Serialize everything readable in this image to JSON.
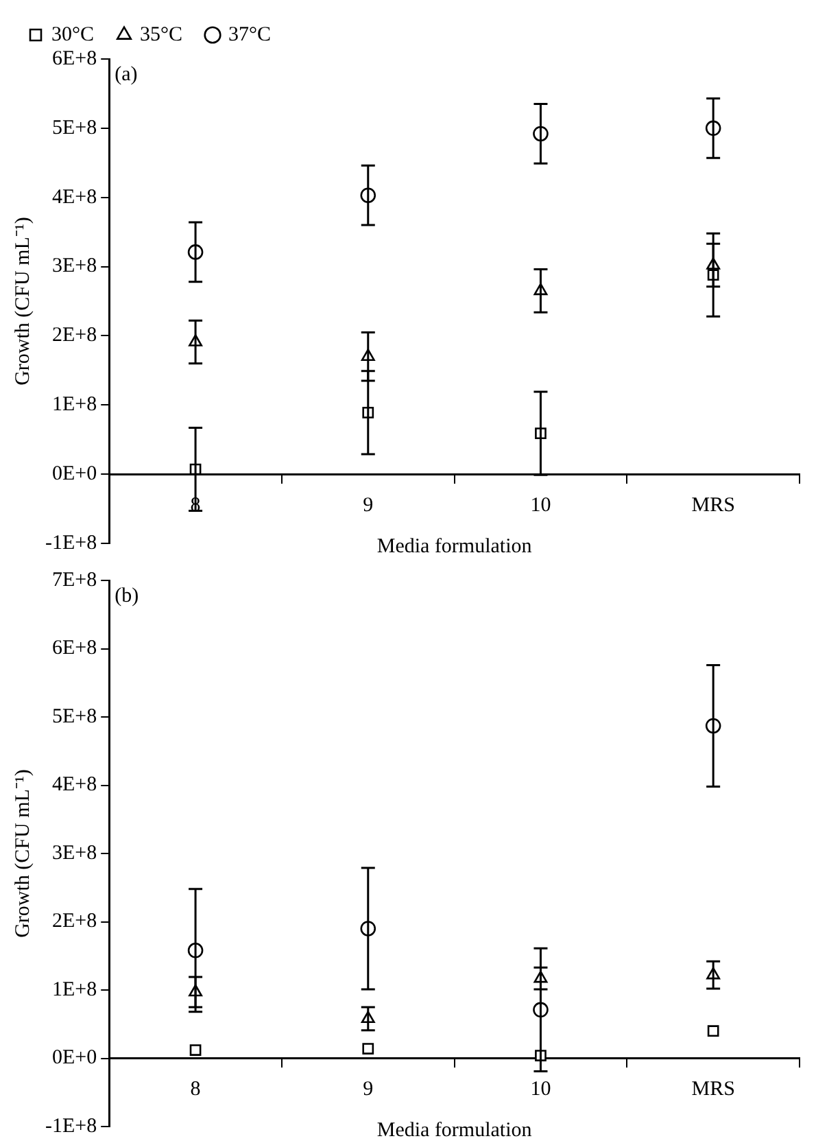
{
  "chart_data": [
    {
      "type": "scatter",
      "xlabel": "Media formulation",
      "ylabel": "Growth (CFU mL⁻¹)",
      "annotations": [
        "(a)"
      ],
      "categories": [
        "8",
        "9",
        "10",
        "MRS"
      ],
      "series": [
        {
          "name": "30°C",
          "color": "#000000",
          "marker": "square",
          "values": [
            7000000,
            89000000,
            59000000,
            288000000
          ],
          "errors": [
            60000000,
            60000000,
            60000000,
            60000000
          ]
        },
        {
          "name": "35°C",
          "color": "#000000",
          "marker": "triangle",
          "values": [
            191000000,
            170000000,
            265000000,
            302000000
          ],
          "errors": [
            31000000,
            35000000,
            31000000,
            31000000
          ]
        },
        {
          "name": "37°C",
          "color": "#000000",
          "marker": "circle",
          "values": [
            321000000,
            403000000,
            492000000,
            500000000
          ],
          "errors": [
            43000000,
            43000000,
            43000000,
            43000000
          ]
        }
      ],
      "ylim": [
        -100000000,
        600000000
      ],
      "yticks": [
        {
          "value": -100000000,
          "label": "-1E+8"
        },
        {
          "value": 0,
          "label": "0E+0"
        },
        {
          "value": 100000000,
          "label": "1E+8"
        },
        {
          "value": 200000000,
          "label": "2E+8"
        },
        {
          "value": 300000000,
          "label": "3E+8"
        },
        {
          "value": 400000000,
          "label": "4E+8"
        },
        {
          "value": 500000000,
          "label": "5E+8"
        },
        {
          "value": 600000000,
          "label": "6E+8"
        }
      ],
      "grid": false,
      "legend": "top left"
    },
    {
      "type": "scatter",
      "xlabel": "Media formulation",
      "ylabel": "Growth (CFU mL⁻¹)",
      "annotations": [
        "(b)"
      ],
      "categories": [
        "8",
        "9",
        "10",
        "MRS"
      ],
      "series": [
        {
          "color": "#000000",
          "marker": "square",
          "values": [
            12000000,
            14000000,
            4000000,
            40000000
          ]
        },
        {
          "color": "#000000",
          "marker": "triangle",
          "values": [
            97000000,
            58000000,
            117000000,
            122000000
          ],
          "errors": [
            22000000,
            17000000,
            16000000,
            20000000
          ]
        },
        {
          "color": "#000000",
          "marker": "circle",
          "values": [
            158000000,
            190000000,
            71000000,
            487000000
          ],
          "errors": [
            90000000,
            89000000,
            90000000,
            89000000
          ]
        }
      ],
      "ylim": [
        -100000000,
        700000000
      ],
      "yticks": [
        {
          "value": -100000000,
          "label": "-1E+8"
        },
        {
          "value": 0,
          "label": "0E+0"
        },
        {
          "value": 100000000,
          "label": "1E+8"
        },
        {
          "value": 200000000,
          "label": "2E+8"
        },
        {
          "value": 300000000,
          "label": "3E+8"
        },
        {
          "value": 400000000,
          "label": "4E+8"
        },
        {
          "value": 500000000,
          "label": "5E+8"
        },
        {
          "value": 600000000,
          "label": "6E+8"
        },
        {
          "value": 700000000,
          "label": "7E+8"
        }
      ],
      "grid": false,
      "legend": false
    }
  ]
}
